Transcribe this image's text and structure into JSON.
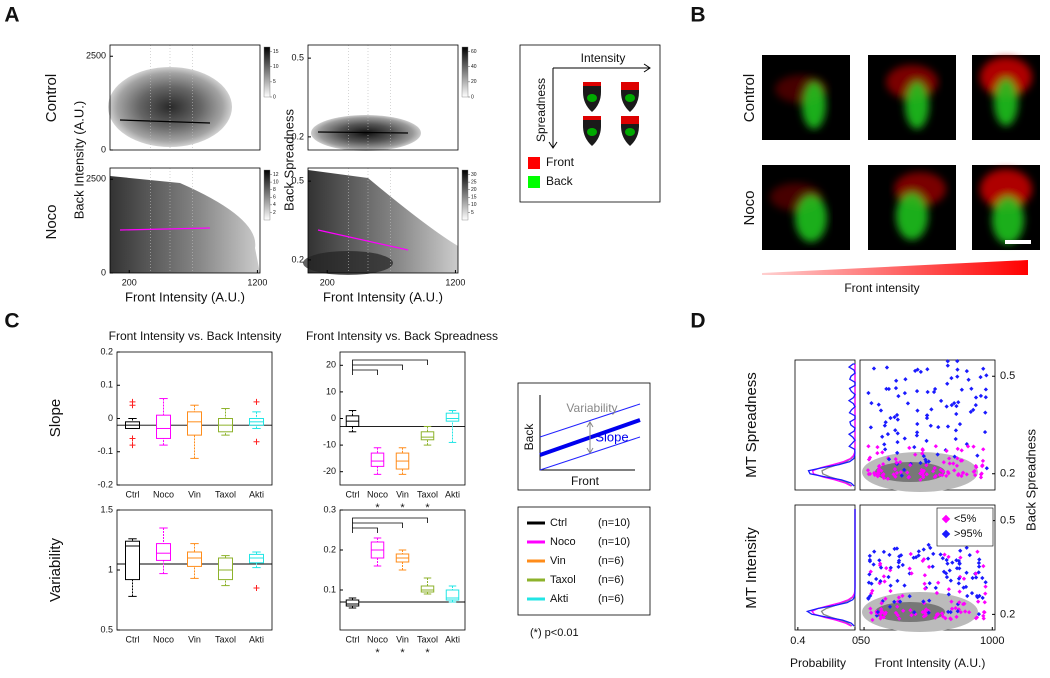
{
  "panel_labels": [
    "A",
    "B",
    "C",
    "D"
  ],
  "panel_a": {
    "rows": [
      "Control",
      "Noco"
    ],
    "y_labels": [
      "Back Intensity (A.U.)",
      "Back Spreadness"
    ],
    "x_label": "Front Intensity (A.U.)",
    "plots": [
      {
        "ylim": [
          0,
          2800
        ],
        "yticks": [
          2500,
          0
        ],
        "xlim": [
          50,
          1220
        ],
        "colorbar": [
          15,
          10,
          5,
          0
        ]
      },
      {
        "ylim": [
          0.15,
          0.55
        ],
        "yticks": [
          0.5,
          0.2
        ],
        "xlim": [
          50,
          1220
        ],
        "colorbar": [
          60,
          40,
          20,
          0
        ]
      },
      {
        "ylim": [
          0,
          2800
        ],
        "yticks": [
          2500,
          0
        ],
        "xlim": [
          50,
          1220
        ],
        "xticks": [
          200,
          1200
        ],
        "colorbar": [
          12,
          10,
          8,
          6,
          4,
          2
        ]
      },
      {
        "ylim": [
          0.15,
          0.55
        ],
        "yticks": [
          0.5,
          0.2
        ],
        "xlim": [
          50,
          1220
        ],
        "xticks": [
          200,
          1200
        ],
        "colorbar": [
          30,
          25,
          20,
          15,
          10,
          5
        ]
      }
    ],
    "legend": {
      "x_axis": "Intensity",
      "y_axis": "Spreadness",
      "items": [
        {
          "label": "Front",
          "color": "#ff0000"
        },
        {
          "label": "Back",
          "color": "#00ff00"
        }
      ]
    }
  },
  "panel_b": {
    "rows": [
      "Control",
      "Noco"
    ],
    "x_label": "Front intensity"
  },
  "panel_c": {
    "titles": [
      "Front Intensity vs. Back Intensity",
      "Front Intensity vs. Back Spreadness"
    ],
    "rows": [
      "Slope",
      "Variability"
    ],
    "categories": [
      "Ctrl",
      "Noco",
      "Vin",
      "Taxol",
      "Akti"
    ],
    "significance_mark": "*",
    "significant": [
      "Noco",
      "Vin",
      "Taxol"
    ],
    "plots": [
      {
        "ylim": [
          -0.2,
          0.2
        ],
        "yticks": [
          0.2,
          0.1,
          0,
          -0.1,
          -0.2
        ],
        "reference": -0.02,
        "boxes": [
          {
            "min": -0.03,
            "q1": -0.03,
            "median": -0.02,
            "q3": -0.01,
            "max": 0.0,
            "outliers": [
              0.05,
              0.04,
              -0.06,
              -0.08
            ]
          },
          {
            "min": -0.08,
            "q1": -0.06,
            "median": -0.03,
            "q3": 0.01,
            "max": 0.06
          },
          {
            "min": -0.12,
            "q1": -0.05,
            "median": -0.01,
            "q3": 0.02,
            "max": 0.04
          },
          {
            "min": -0.05,
            "q1": -0.04,
            "median": -0.02,
            "q3": 0.0,
            "max": 0.03
          },
          {
            "min": -0.03,
            "q1": -0.02,
            "median": -0.01,
            "q3": 0.0,
            "max": 0.02,
            "outliers": [
              0.05,
              -0.07
            ]
          }
        ]
      },
      {
        "ylim": [
          -25,
          25
        ],
        "yticks": [
          20,
          10,
          0,
          -10,
          -20
        ],
        "reference": -3,
        "compared": true,
        "boxes": [
          {
            "min": -5,
            "q1": -3,
            "median": -1,
            "q3": 1,
            "max": 3
          },
          {
            "min": -21,
            "q1": -18,
            "median": -16,
            "q3": -13,
            "max": -11
          },
          {
            "min": -21,
            "q1": -19,
            "median": -16,
            "q3": -13,
            "max": -11
          },
          {
            "min": -10,
            "q1": -8,
            "median": -7,
            "q3": -5,
            "max": -3
          },
          {
            "min": -9,
            "q1": -1,
            "median": 0,
            "q3": 2,
            "max": 3
          }
        ]
      },
      {
        "ylim": [
          0.5,
          1.5
        ],
        "yticks": [
          1.5,
          1,
          0.5
        ],
        "reference": 1.05,
        "boxes": [
          {
            "min": 0.78,
            "q1": 0.92,
            "median": 1.2,
            "q3": 1.24,
            "max": 1.26
          },
          {
            "min": 0.97,
            "q1": 1.08,
            "median": 1.14,
            "q3": 1.22,
            "max": 1.35
          },
          {
            "min": 0.93,
            "q1": 1.03,
            "median": 1.1,
            "q3": 1.15,
            "max": 1.22
          },
          {
            "min": 0.87,
            "q1": 0.92,
            "median": 1.0,
            "q3": 1.1,
            "max": 1.12
          },
          {
            "min": 1.02,
            "q1": 1.06,
            "median": 1.1,
            "q3": 1.13,
            "max": 1.15,
            "outliers": [
              0.85
            ]
          }
        ]
      },
      {
        "ylim": [
          0,
          0.3
        ],
        "yticks": [
          0.3,
          0.2,
          0.1
        ],
        "reference": 0.07,
        "compared": true,
        "boxes": [
          {
            "min": 0.055,
            "q1": 0.06,
            "median": 0.065,
            "q3": 0.075,
            "max": 0.08
          },
          {
            "min": 0.16,
            "q1": 0.18,
            "median": 0.2,
            "q3": 0.22,
            "max": 0.23
          },
          {
            "min": 0.15,
            "q1": 0.17,
            "median": 0.18,
            "q3": 0.19,
            "max": 0.2
          },
          {
            "min": 0.09,
            "q1": 0.095,
            "median": 0.1,
            "q3": 0.11,
            "max": 0.13
          },
          {
            "min": 0.07,
            "q1": 0.075,
            "median": 0.08,
            "q3": 0.1,
            "max": 0.11
          }
        ]
      }
    ],
    "schematic": {
      "variability": "Variability",
      "slope": "Slope",
      "y_axis": "Back",
      "x_axis": "Front"
    },
    "legend": [
      {
        "name": "Ctrl",
        "color": "#000000",
        "n": "(n=10)"
      },
      {
        "name": "Noco",
        "color": "#ff00ff",
        "n": "(n=10)"
      },
      {
        "name": "Vin",
        "color": "#ff8c1a",
        "n": "(n=6)"
      },
      {
        "name": "Taxol",
        "color": "#8db22b",
        "n": "(n=6)"
      },
      {
        "name": "Akti",
        "color": "#22e5e5",
        "n": "(n=6)"
      }
    ],
    "note": "(*) p<0.01"
  },
  "panel_d": {
    "rows": [
      "MT Spreadness",
      "MT Intensity"
    ],
    "y2_label": "Back Spreadness",
    "plots": [
      {
        "ylim": [
          0.15,
          0.55
        ],
        "yticks": [
          0.5,
          0.2
        ]
      },
      {
        "ylim": [
          0.15,
          0.55
        ],
        "yticks": [
          0.5,
          0.2
        ]
      }
    ],
    "prob_xlim": [
      0,
      0.42
    ],
    "prob_ticks": [
      0.4,
      0
    ],
    "front_xlim": [
      20,
      1020
    ],
    "front_ticks": [
      50,
      1000
    ],
    "x_labels": [
      "Probability",
      "Front Intensity (A.U.)"
    ],
    "legend": [
      {
        "label": "<5%",
        "color": "#ff00ff"
      },
      {
        "label": ">95%",
        "color": "#1a1aff"
      }
    ]
  }
}
